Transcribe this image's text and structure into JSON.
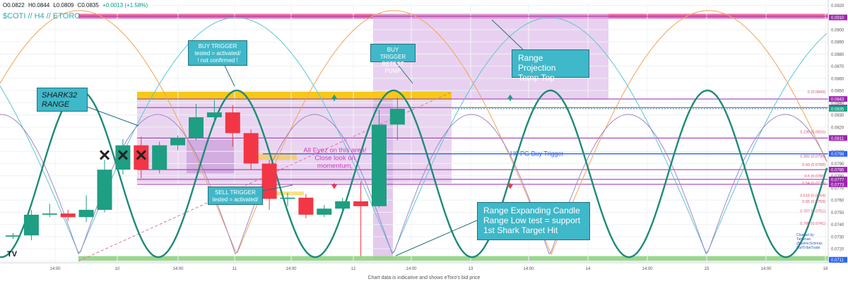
{
  "header": {
    "symbol_label": "$COTI // H4 // ETORO",
    "open": "O0.0822",
    "high": "H0.0844",
    "low": "L0.0809",
    "close": "C0.0835",
    "change": "+0.0013 (+1.58%)"
  },
  "footer_note": "Chart data is indicative and shows eToro's bid price",
  "credits": [
    "Chartart by",
    "Tabsman",
    "@SolnicSchmax",
    "SurfTribeTrade"
  ],
  "logo_text": "TV",
  "annotations": {
    "shark_range": [
      "SHARK32",
      "RANGE"
    ],
    "buy_trigger": [
      "BUY TRIGGER",
      "tested = activated/",
      "! not confirmed !"
    ],
    "buy_trigger_retest": [
      "BUY TRIGGER",
      "RETEST PUMP"
    ],
    "range_projection": [
      "Range Projection",
      "Temp Top"
    ],
    "sell_trigger": [
      "SELL TRIGGER",
      "tested = activated/"
    ],
    "range_expanding": [
      "Range Expanding Candle",
      "Range Low test = support",
      "1st Shark Target Hit"
    ],
    "eyez": [
      "All Eyez on this area!",
      "Close look on",
      "momentum,"
    ],
    "h6_trigger": "H6 PG Buy Trigger"
  },
  "colors": {
    "up": "#1e9e82",
    "down": "#f23645",
    "wave": "#1e8a78",
    "accent_cyan": "#3fb8c9",
    "magenta": "#9c27b0",
    "blue_line": "#2962ff",
    "range_fill": "#d9b3e6",
    "gold": "#f6c915",
    "green_bar": "#8fd17f",
    "pink_bar": "#e7569a"
  },
  "chart_data": {
    "type": "candlestick",
    "price_range": [
      0.07085,
      0.0922
    ],
    "x_ticks": [
      "14:00",
      "10",
      "14:00",
      "11",
      "14:00",
      "12",
      "14:00",
      "13",
      "14:00",
      "14",
      "14:00",
      "15",
      "14:00",
      "16"
    ],
    "y_ticks": [
      "0.0920",
      "0.0900",
      "0.0890",
      "0.0880",
      "0.0870",
      "0.0860",
      "0.0850",
      "0.0840",
      "0.0830",
      "0.0820",
      "0.0810",
      "0.0800",
      "0.0790",
      "0.0780",
      "0.0770",
      "0.0760",
      "0.0750",
      "0.0740",
      "0.0730",
      "0.0720",
      "0.0710"
    ],
    "price_labels": [
      {
        "value": 0.091,
        "text": "0.0910",
        "color": "#9c27b0"
      },
      {
        "value": 0.0843,
        "text": "0.0843",
        "color": "#9c27b0"
      },
      {
        "value": 0.0836,
        "text": "0.0836",
        "color": "#9c27b0"
      },
      {
        "value": 0.0835,
        "text": "0.0835",
        "color": "#1e9e82"
      },
      {
        "value": 0.0811,
        "text": "0.0811",
        "color": "#9c27b0"
      },
      {
        "value": 0.0798,
        "text": "0.0798",
        "color": "#2962ff"
      },
      {
        "value": 0.0785,
        "text": "0.0785",
        "color": "#9c27b0"
      },
      {
        "value": 0.0777,
        "text": "0.0777",
        "color": "#9c27b0"
      },
      {
        "value": 0.0773,
        "text": "0.0773",
        "color": "#9c27b0"
      },
      {
        "value": 0.0711,
        "text": "0.0711",
        "color": "#2962ff"
      }
    ],
    "fib_levels": [
      {
        "label": "0 (0.0849)",
        "value": 0.0849
      },
      {
        "label": "0.236 (0.0816)",
        "value": 0.0816
      },
      {
        "label": "0.382 (0.0796)",
        "value": 0.0796
      },
      {
        "label": "0.43 (0.0789)",
        "value": 0.0789
      },
      {
        "label": "0.5 (0.0780)",
        "value": 0.078
      },
      {
        "label": "0.54 (0.0774)",
        "value": 0.0774
      },
      {
        "label": "0.618 (0.0764)",
        "value": 0.0764
      },
      {
        "label": "0.65 (0.0759)",
        "value": 0.0759
      },
      {
        "label": "0.707 (0.0751)",
        "value": 0.0751
      },
      {
        "label": "0.786 (0.0741)",
        "value": 0.0741
      }
    ],
    "candles": [
      {
        "o": 0.073,
        "h": 0.0733,
        "l": 0.0728,
        "c": 0.0731
      },
      {
        "o": 0.0731,
        "h": 0.0752,
        "l": 0.0727,
        "c": 0.0748
      },
      {
        "o": 0.0748,
        "h": 0.0757,
        "l": 0.0746,
        "c": 0.0749
      },
      {
        "o": 0.0749,
        "h": 0.0752,
        "l": 0.0743,
        "c": 0.0746
      },
      {
        "o": 0.0746,
        "h": 0.0764,
        "l": 0.0742,
        "c": 0.0752
      },
      {
        "o": 0.0752,
        "h": 0.0793,
        "l": 0.075,
        "c": 0.0785
      },
      {
        "o": 0.0785,
        "h": 0.081,
        "l": 0.0781,
        "c": 0.0805
      },
      {
        "o": 0.0805,
        "h": 0.0812,
        "l": 0.0778,
        "c": 0.0785
      },
      {
        "o": 0.0785,
        "h": 0.0808,
        "l": 0.0782,
        "c": 0.0805
      },
      {
        "o": 0.0805,
        "h": 0.0813,
        "l": 0.0801,
        "c": 0.0811
      },
      {
        "o": 0.0811,
        "h": 0.0839,
        "l": 0.0809,
        "c": 0.0828
      },
      {
        "o": 0.0828,
        "h": 0.0842,
        "l": 0.0822,
        "c": 0.0832
      },
      {
        "o": 0.0832,
        "h": 0.0838,
        "l": 0.0804,
        "c": 0.0815
      },
      {
        "o": 0.0815,
        "h": 0.0818,
        "l": 0.0785,
        "c": 0.079
      },
      {
        "o": 0.079,
        "h": 0.0793,
        "l": 0.0752,
        "c": 0.0761
      },
      {
        "o": 0.0761,
        "h": 0.0766,
        "l": 0.0755,
        "c": 0.0762
      },
      {
        "o": 0.0762,
        "h": 0.0765,
        "l": 0.0745,
        "c": 0.0748
      },
      {
        "o": 0.0748,
        "h": 0.0756,
        "l": 0.0746,
        "c": 0.0753
      },
      {
        "o": 0.0753,
        "h": 0.0762,
        "l": 0.0751,
        "c": 0.0759
      },
      {
        "o": 0.0759,
        "h": 0.0775,
        "l": 0.0714,
        "c": 0.0755
      },
      {
        "o": 0.0755,
        "h": 0.0834,
        "l": 0.0754,
        "c": 0.0822
      },
      {
        "o": 0.0822,
        "h": 0.0844,
        "l": 0.0809,
        "c": 0.0835
      }
    ]
  }
}
